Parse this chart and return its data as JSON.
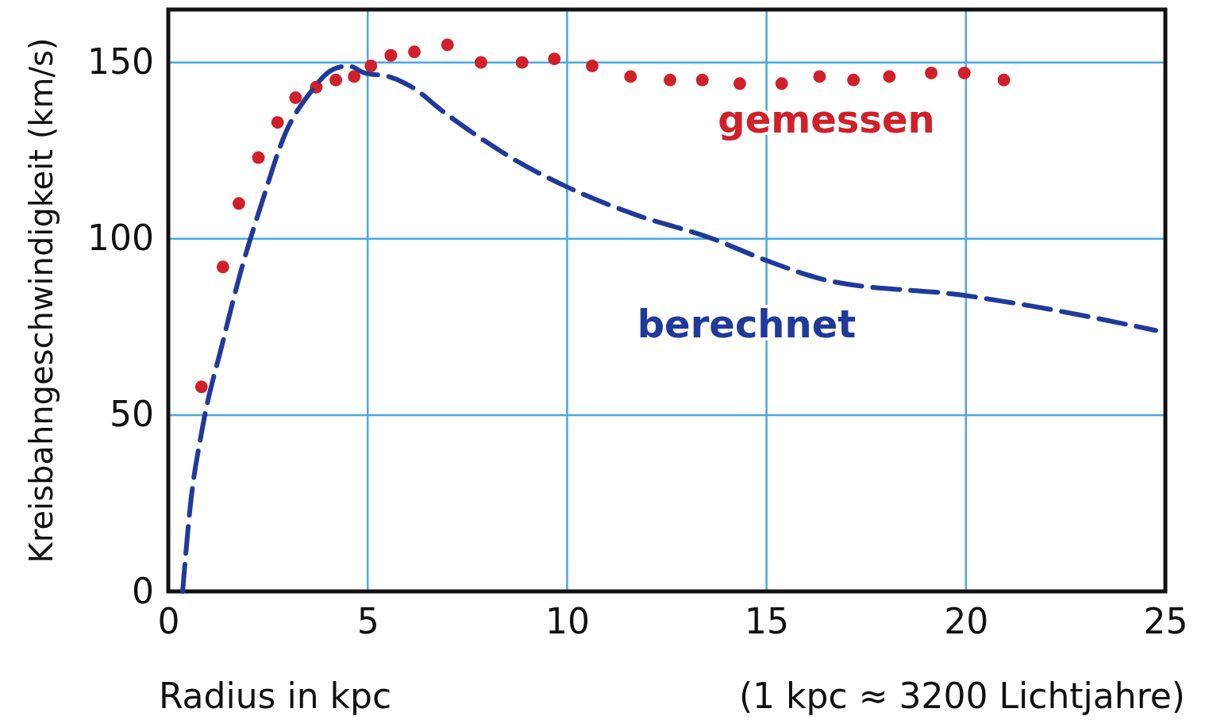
{
  "chart_data": {
    "type": "scatter",
    "xlabel": "Radius in kpc",
    "ylabel": "Kreisbahngeschwindigkeit (km/s)",
    "annotations": [
      "(1 kpc ≈ 3200 Lichtjahre)"
    ],
    "xlim": [
      0,
      25
    ],
    "xticks": [
      0,
      5,
      10,
      15,
      20,
      25
    ],
    "ylim": [
      0,
      165
    ],
    "yticks": [
      0,
      50,
      100,
      150
    ],
    "grid": true,
    "legend": false,
    "series": [
      {
        "name": "gemessen",
        "marker": "circle",
        "color": "#d0202a",
        "x": [
          0.83,
          1.37,
          1.77,
          2.26,
          2.74,
          3.19,
          3.71,
          4.2,
          4.66,
          5.08,
          5.58,
          6.17,
          7.0,
          7.84,
          8.87,
          9.68,
          10.63,
          11.59,
          12.58,
          13.39,
          14.33,
          15.38,
          16.33,
          17.18,
          18.08,
          19.13,
          19.96,
          20.95
        ],
        "values": [
          58,
          92,
          110,
          123,
          133,
          140,
          143,
          145,
          146,
          149,
          152,
          153,
          155,
          150,
          150,
          151,
          149,
          146,
          145,
          145,
          144,
          144,
          146,
          145,
          146,
          147,
          147,
          145
        ]
      },
      {
        "name": "berechnet",
        "type": "line",
        "line_style": "dashed",
        "color": "#1f3a9a",
        "x": [
          0.36,
          0.55,
          0.85,
          1.35,
          1.85,
          2.34,
          2.94,
          3.53,
          4.13,
          4.52,
          4.92,
          5.52,
          6.11,
          6.9,
          7.9,
          8.9,
          9.94,
          11.67,
          13.65,
          14.96,
          16.6,
          19.92,
          21.6,
          24.76
        ],
        "values": [
          0,
          24,
          46,
          70,
          92,
          110,
          130,
          141,
          148,
          149,
          147,
          146,
          143,
          136,
          128,
          121,
          115,
          107,
          100,
          94,
          88,
          84,
          81,
          74
        ]
      }
    ]
  }
}
